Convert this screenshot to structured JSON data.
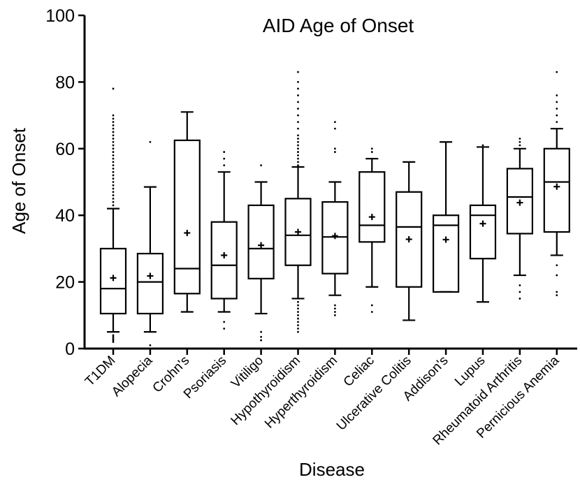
{
  "chart_data": {
    "type": "box",
    "title": "AID Age of Onset",
    "xlabel": "Disease",
    "ylabel": "Age of Onset",
    "ylim": [
      0,
      100
    ],
    "yticks": [
      0,
      20,
      40,
      60,
      80,
      100
    ],
    "grid": false,
    "legend": "none",
    "categories": [
      "T1DM",
      "Alopecia",
      "Crohn's",
      "Psoriasis",
      "Vitiligo",
      "Hypothyroidism",
      "Hyperthyroidism",
      "Celiac",
      "Ulcerative Colitis",
      "Addison's",
      "Lupus",
      "Rheumatoid Arthritis",
      "Pernicious Anemia"
    ],
    "boxes": [
      {
        "category": "T1DM",
        "whisker_low": 5,
        "q1": 10.5,
        "median": 18,
        "q3": 30,
        "whisker_high": 42,
        "mean": 21.2,
        "outliers": [
          2,
          2.5,
          3,
          3.5,
          4,
          43,
          44,
          45,
          46,
          47,
          48,
          49,
          50,
          51,
          52,
          53,
          54,
          55,
          56,
          57,
          58,
          59,
          60,
          61,
          62,
          63,
          64,
          65,
          66,
          67,
          68,
          69,
          70,
          78
        ]
      },
      {
        "category": "Alopecia",
        "whisker_low": 5,
        "q1": 10.5,
        "median": 20,
        "q3": 28.5,
        "whisker_high": 48.5,
        "mean": 21.8,
        "outliers": [
          1,
          62
        ]
      },
      {
        "category": "Crohn's",
        "whisker_low": 11,
        "q1": 16.5,
        "median": 24,
        "q3": 62.5,
        "whisker_high": 71,
        "mean": 34.7,
        "outliers": []
      },
      {
        "category": "Psoriasis",
        "whisker_low": 11,
        "q1": 15,
        "median": 25,
        "q3": 38,
        "whisker_high": 53,
        "mean": 28,
        "outliers": [
          6,
          8,
          55,
          57,
          59
        ]
      },
      {
        "category": "Vitiligo",
        "whisker_low": 10.5,
        "q1": 21,
        "median": 30,
        "q3": 43,
        "whisker_high": 50,
        "mean": 31,
        "outliers": [
          2.5,
          3.5,
          5,
          55
        ]
      },
      {
        "category": "Hypothyroidism",
        "whisker_low": 15,
        "q1": 25,
        "median": 34,
        "q3": 45,
        "whisker_high": 54.5,
        "mean": 35,
        "outliers": [
          5,
          6,
          7,
          8,
          9,
          10,
          11,
          12,
          13,
          14,
          55,
          56,
          57,
          58,
          59,
          60,
          61,
          62,
          63,
          64,
          66,
          68,
          70,
          72,
          74,
          76,
          78,
          80,
          83
        ]
      },
      {
        "category": "Hyperthyroidism",
        "whisker_low": 16,
        "q1": 22.5,
        "median": 33.5,
        "q3": 44,
        "whisker_high": 50,
        "mean": 33.8,
        "outliers": [
          10,
          11,
          12,
          13,
          59,
          60,
          66,
          68
        ]
      },
      {
        "category": "Celiac",
        "whisker_low": 18.5,
        "q1": 32,
        "median": 37,
        "q3": 53,
        "whisker_high": 57,
        "mean": 39.5,
        "outliers": [
          11,
          13,
          59,
          60
        ]
      },
      {
        "category": "Ulcerative Colitis",
        "whisker_low": 8.5,
        "q1": 18.5,
        "median": 36.5,
        "q3": 47,
        "whisker_high": 56,
        "mean": 32.8,
        "outliers": []
      },
      {
        "category": "Addison's",
        "whisker_low": 17,
        "q1": 17,
        "median": 37,
        "q3": 40,
        "whisker_high": 62,
        "mean": 32.7,
        "outliers": []
      },
      {
        "category": "Lupus",
        "whisker_low": 14,
        "q1": 27,
        "median": 40,
        "q3": 43,
        "whisker_high": 60.5,
        "mean": 37.5,
        "outliers": [
          61
        ]
      },
      {
        "category": "Rheumatoid Arthritis",
        "whisker_low": 22,
        "q1": 34.5,
        "median": 45.5,
        "q3": 54,
        "whisker_high": 60,
        "mean": 43.8,
        "outliers": [
          15,
          17,
          19,
          61,
          62,
          63
        ]
      },
      {
        "category": "Pernicious Anemia",
        "whisker_low": 28,
        "q1": 35,
        "median": 50,
        "q3": 60,
        "whisker_high": 66,
        "mean": 48.6,
        "outliers": [
          16,
          17,
          22,
          25,
          68,
          70,
          72,
          74,
          76,
          83
        ]
      }
    ]
  }
}
